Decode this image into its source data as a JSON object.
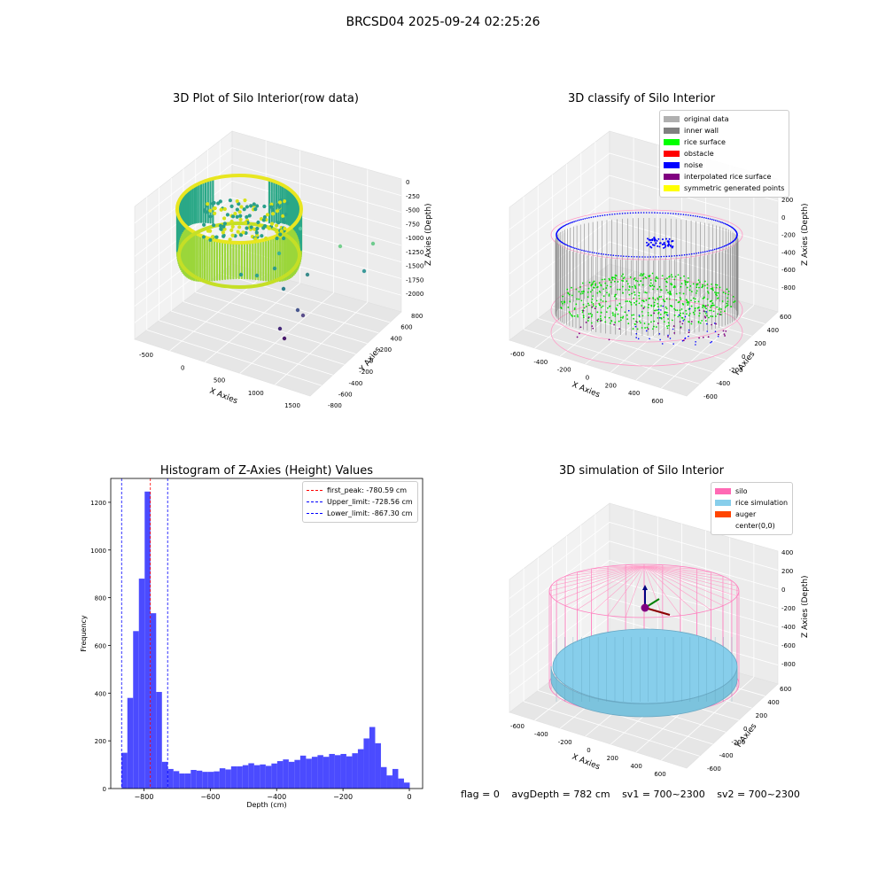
{
  "figure": {
    "title": "BRCSD04 2025-09-24 02:25:26",
    "footer": {
      "flag": "flag = 0",
      "avg_depth": "avgDepth = 782 cm",
      "sv1": "sv1 = 700~2300",
      "sv2": "sv2 = 700~2300"
    }
  },
  "panels": {
    "p1": {
      "title": "3D Plot of Silo Interior(row data)",
      "x_label": "X Axies",
      "y_label": "Y Axies",
      "z_label": "Z Axies (Depth)",
      "x_ticks": [
        "-500",
        "0",
        "500",
        "1000",
        "1500"
      ],
      "y_ticks": [
        "-800",
        "-600",
        "-400",
        "-200",
        "0",
        "200",
        "400",
        "600",
        "800"
      ],
      "z_ticks": [
        "0",
        "-250",
        "-500",
        "-750",
        "-1000",
        "-1250",
        "-1500",
        "-1750",
        "-2000"
      ]
    },
    "p2": {
      "title": "3D classify of Silo Interior",
      "x_label": "X Axies",
      "y_label": "Y Axies",
      "z_label": "Z Axies (Depth)",
      "x_ticks": [
        "-600",
        "-400",
        "-200",
        "0",
        "200",
        "400",
        "600"
      ],
      "y_ticks": [
        "-600",
        "-400",
        "-200",
        "0",
        "200",
        "400",
        "600"
      ],
      "z_ticks": [
        "200",
        "0",
        "-200",
        "-400",
        "-600",
        "-800"
      ],
      "legend": [
        {
          "label": "original data",
          "color": "#b0b0b0"
        },
        {
          "label": "inner wall",
          "color": "#808080"
        },
        {
          "label": "rice surface",
          "color": "#00ff00"
        },
        {
          "label": "obstacle",
          "color": "#ff0000"
        },
        {
          "label": "noise",
          "color": "#0000ff"
        },
        {
          "label": "interpolated rice surface",
          "color": "#800080"
        },
        {
          "label": "symmetric generated points",
          "color": "#ffff00"
        }
      ]
    },
    "p4": {
      "title": "3D simulation of Silo Interior",
      "x_label": "X Axies",
      "y_label": "Y Axies",
      "z_label": "Z Axies (Depth)",
      "x_ticks": [
        "-600",
        "-400",
        "-200",
        "0",
        "200",
        "400",
        "600"
      ],
      "y_ticks": [
        "-600",
        "-400",
        "-200",
        "0",
        "200",
        "400",
        "600"
      ],
      "z_ticks": [
        "400",
        "200",
        "0",
        "-200",
        "-400",
        "-600",
        "-800"
      ],
      "legend": [
        {
          "label": "silo",
          "color": "#ff69b4"
        },
        {
          "label": "rice simulation",
          "color": "#87ceeb"
        },
        {
          "label": "auger",
          "color": "#ff4500"
        },
        {
          "label": "center(0,0)",
          "color": "#ffffff"
        }
      ]
    }
  },
  "chart_data": [
    {
      "type": "histogram",
      "title": "Histogram of Z-Axies (Height) Values",
      "xlabel": "Depth (cm)",
      "ylabel": "Frequency",
      "xlim": [
        -900,
        40
      ],
      "ylim": [
        0,
        1300
      ],
      "x_ticks": [
        -800,
        -600,
        -400,
        -200,
        0
      ],
      "y_ticks": [
        0,
        200,
        400,
        600,
        800,
        1000,
        1200
      ],
      "bar_color": "#4b4bff",
      "bin_width": 17.37,
      "bins_start": -867.3,
      "values": [
        150,
        380,
        660,
        880,
        1245,
        735,
        405,
        112,
        82,
        73,
        63,
        63,
        78,
        75,
        70,
        70,
        72,
        85,
        80,
        93,
        93,
        98,
        106,
        98,
        101,
        95,
        105,
        115,
        122,
        112,
        120,
        138,
        125,
        133,
        140,
        133,
        145,
        140,
        145,
        135,
        148,
        165,
        210,
        258,
        190,
        90,
        55,
        82,
        42,
        25
      ],
      "vlines": [
        {
          "label": "first_peak: -780.59 cm",
          "x": -780.59,
          "color": "#ff0000"
        },
        {
          "label": "Upper_limit: -728.56 cm",
          "x": -728.56,
          "color": "#0000ff"
        },
        {
          "label": "Lower_limit: -867.30 cm",
          "x": -867.3,
          "color": "#0000ff"
        }
      ],
      "legend_position": "upper right"
    }
  ]
}
